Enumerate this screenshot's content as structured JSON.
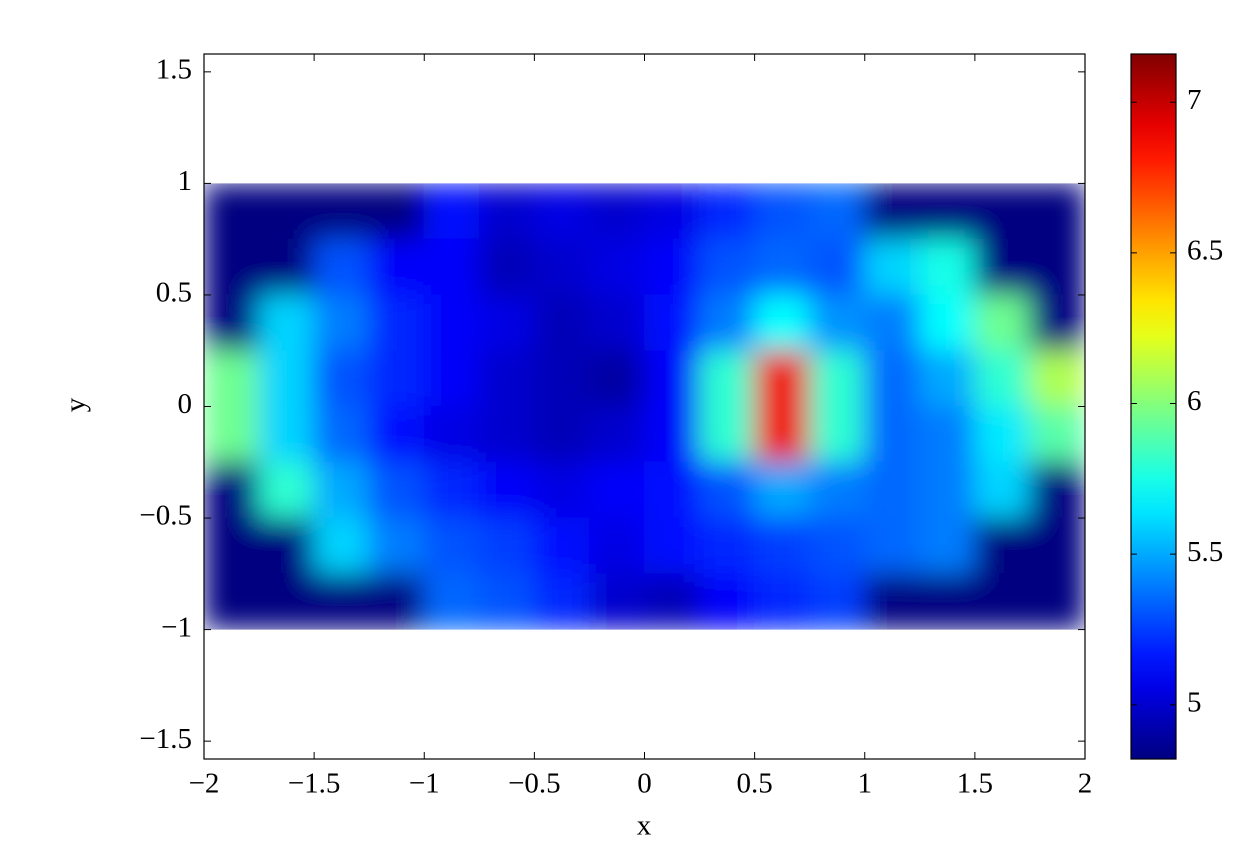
{
  "chart_data": {
    "type": "heatmap",
    "xlabel": "x",
    "ylabel": "y",
    "colormap": "jet",
    "x": [
      -1.875,
      -1.625,
      -1.375,
      -1.125,
      -0.875,
      -0.625,
      -0.375,
      -0.125,
      0.125,
      0.375,
      0.625,
      0.875,
      1.125,
      1.375,
      1.625,
      1.875
    ],
    "y": [
      0.875,
      0.625,
      0.375,
      0.125,
      -0.125,
      -0.375,
      -0.625,
      -0.875
    ],
    "z": [
      [
        4.82,
        4.82,
        4.82,
        4.82,
        5.15,
        5.0,
        5.05,
        5.0,
        5.05,
        5.2,
        5.3,
        5.35,
        4.82,
        4.82,
        4.82,
        4.82
      ],
      [
        4.82,
        4.82,
        5.3,
        5.1,
        5.1,
        4.95,
        5.0,
        5.05,
        5.1,
        5.3,
        5.35,
        5.3,
        5.6,
        5.75,
        4.82,
        4.82
      ],
      [
        4.82,
        5.6,
        5.4,
        5.2,
        5.1,
        5.05,
        4.95,
        5.0,
        5.15,
        5.4,
        5.7,
        5.45,
        5.4,
        5.7,
        5.95,
        4.82
      ],
      [
        5.95,
        5.6,
        5.3,
        5.2,
        5.1,
        5.0,
        4.95,
        4.9,
        5.1,
        5.8,
        6.9,
        5.8,
        5.35,
        5.5,
        5.8,
        6.1
      ],
      [
        5.95,
        5.6,
        5.35,
        5.15,
        5.05,
        5.0,
        4.95,
        5.0,
        5.1,
        5.8,
        6.9,
        5.8,
        5.35,
        5.4,
        5.65,
        5.9
      ],
      [
        4.82,
        5.8,
        5.5,
        5.3,
        5.2,
        5.1,
        5.05,
        5.1,
        5.15,
        5.3,
        5.5,
        5.4,
        5.35,
        5.4,
        5.6,
        4.82
      ],
      [
        4.82,
        4.82,
        5.6,
        5.4,
        5.3,
        5.25,
        5.15,
        5.05,
        5.15,
        5.2,
        5.25,
        5.3,
        5.35,
        5.4,
        4.82,
        4.82
      ],
      [
        4.82,
        4.82,
        4.82,
        4.82,
        5.35,
        5.3,
        5.2,
        5.0,
        4.95,
        5.1,
        5.2,
        5.25,
        4.82,
        4.82,
        4.82,
        4.82
      ]
    ],
    "xlim": [
      -2,
      2
    ],
    "ylim": [
      -1.58,
      1.58
    ],
    "zlim": [
      4.82,
      7.16
    ],
    "xticks": [
      {
        "value": -2,
        "label": "−2"
      },
      {
        "value": -1.5,
        "label": "−1.5"
      },
      {
        "value": -1,
        "label": "−1"
      },
      {
        "value": -0.5,
        "label": "−0.5"
      },
      0,
      0.5,
      1,
      1.5,
      2
    ],
    "yticks": [
      {
        "value": -1.5,
        "label": "−1.5"
      },
      {
        "value": -1,
        "label": "−1"
      },
      {
        "value": -0.5,
        "label": "−0.5"
      },
      0,
      0.5,
      1,
      1.5
    ],
    "zticks": [
      5,
      5.5,
      6,
      6.5,
      7
    ]
  }
}
